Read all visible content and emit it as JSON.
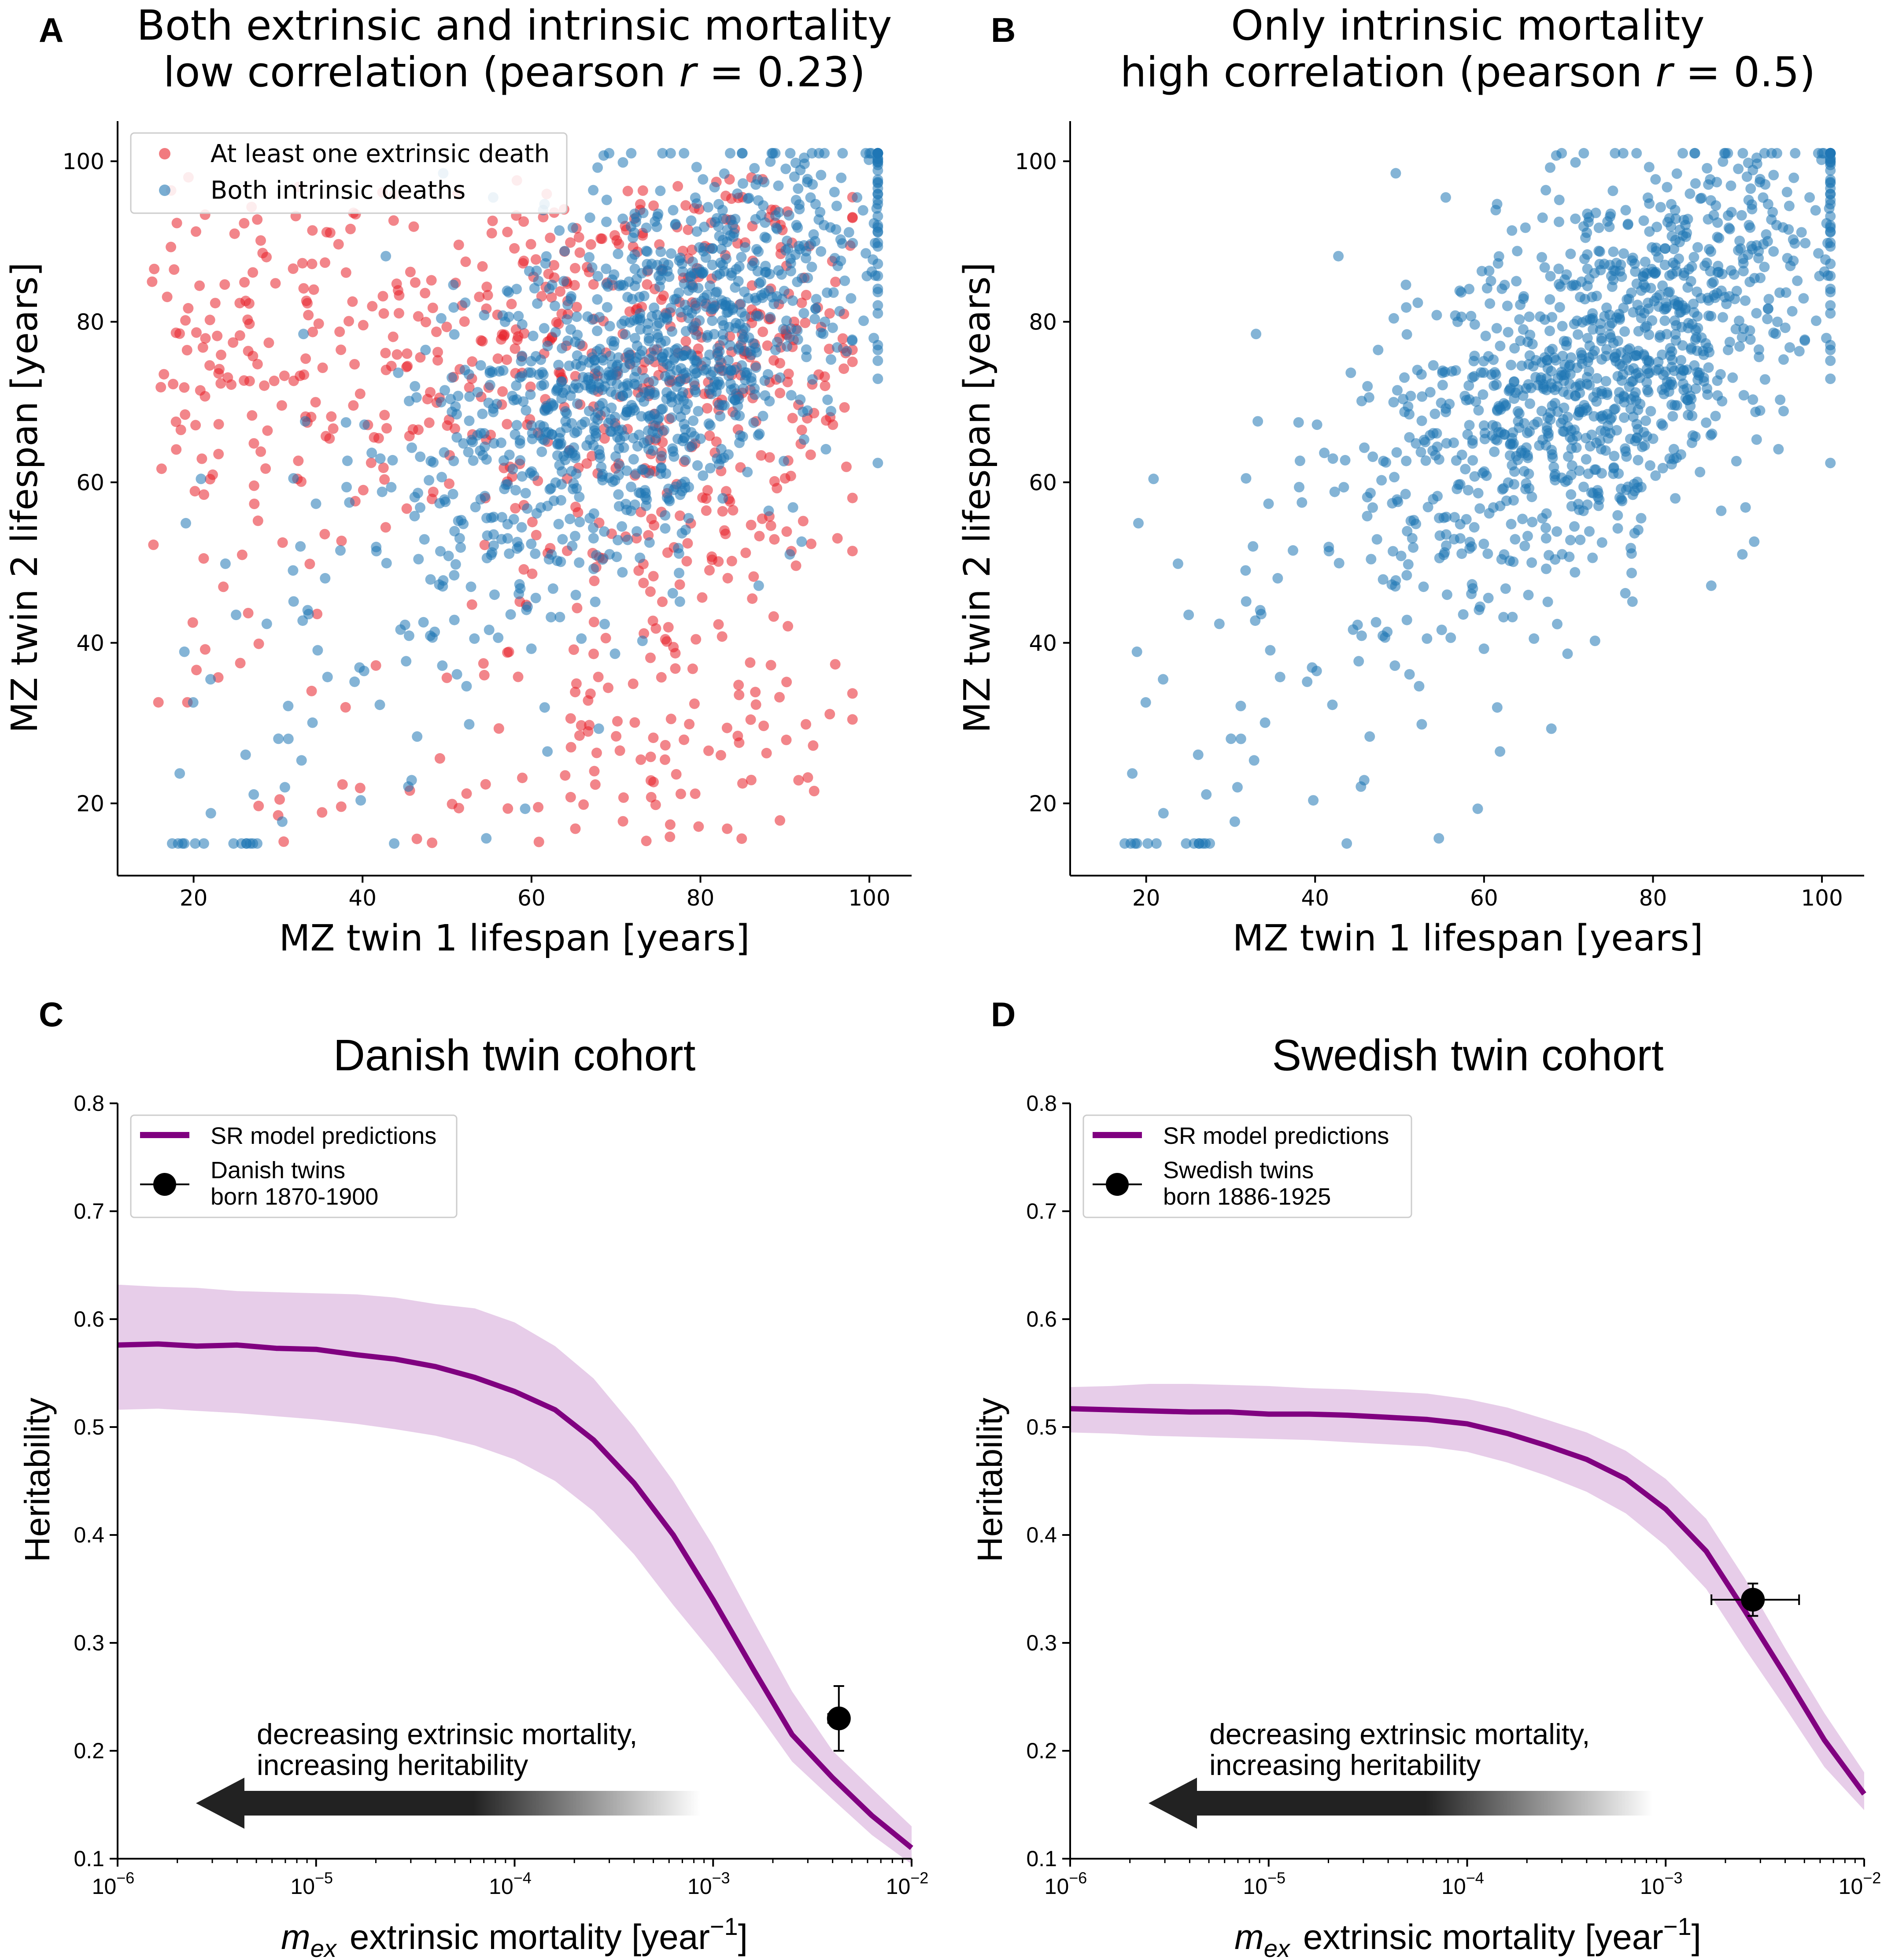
{
  "panels": {
    "A": {
      "letter": "A"
    },
    "B": {
      "letter": "B"
    },
    "C": {
      "letter": "C"
    },
    "D": {
      "letter": "D"
    }
  },
  "colors": {
    "extrinsic": "#e8212a",
    "intrinsic": "#1f77b4",
    "model": "#800080",
    "band": "#c990cf",
    "data_point": "#000000"
  },
  "chart_data": [
    {
      "id": "A",
      "type": "scatter",
      "title_line1": "Both extrinsic and intrinsic mortality",
      "title_line2_pre": "low correlation (pearson ",
      "title_r": "r",
      "title_line2_post": " = 0.23)",
      "xlabel": "MZ twin 1 lifespan [years]",
      "ylabel": "MZ twin 2 lifespan [years]",
      "xlim": [
        11,
        105
      ],
      "ylim": [
        11,
        105
      ],
      "xticks": [
        20,
        40,
        60,
        80,
        100
      ],
      "yticks": [
        20,
        40,
        60,
        80,
        100
      ],
      "legend_position": "top-left",
      "series": [
        {
          "name": "At least one extrinsic death",
          "color": "#e8212a",
          "n_points": 800
        },
        {
          "name": "Both intrinsic deaths",
          "color": "#1f77b4",
          "n_points": 1200
        }
      ],
      "pearson_r": 0.23
    },
    {
      "id": "B",
      "type": "scatter",
      "title_line1": "Only intrinsic mortality",
      "title_line2_pre": "high correlation (pearson ",
      "title_r": "r",
      "title_line2_post": " = 0.5)",
      "xlabel": "MZ twin 1 lifespan [years]",
      "ylabel": "MZ twin 2 lifespan [years]",
      "xlim": [
        11,
        105
      ],
      "ylim": [
        11,
        105
      ],
      "xticks": [
        20,
        40,
        60,
        80,
        100
      ],
      "yticks": [
        20,
        40,
        60,
        80,
        100
      ],
      "series": [
        {
          "name": "",
          "color": "#1f77b4",
          "n_points": 1200
        }
      ],
      "pearson_r": 0.5
    },
    {
      "id": "C",
      "type": "line",
      "title": "Danish twin cohort",
      "ylabel": "Heritability",
      "xlabel_symbol_main": "m",
      "xlabel_symbol_sub": "ex",
      "xlabel_text": "extrinsic mortality [year",
      "xlabel_sup": "−1",
      "xlabel_close": "]",
      "x_scale": "log",
      "xlim": [
        1e-06,
        0.01
      ],
      "ylim": [
        0.1,
        0.8
      ],
      "xticks": [
        {
          "value": 1e-06,
          "base": "10",
          "exp": "−6"
        },
        {
          "value": 1e-05,
          "base": "10",
          "exp": "−5"
        },
        {
          "value": 0.0001,
          "base": "10",
          "exp": "−4"
        },
        {
          "value": 0.001,
          "base": "10",
          "exp": "−3"
        },
        {
          "value": 0.01,
          "base": "10",
          "exp": "−2"
        }
      ],
      "yticks": [
        "0.1",
        "0.2",
        "0.3",
        "0.4",
        "0.5",
        "0.6",
        "0.7",
        "0.8"
      ],
      "legend_position": "top-left",
      "legend": {
        "model_label": "SR model predictions",
        "data_label_line1": "Danish twins",
        "data_label_line2": "born 1870-1900"
      },
      "model": {
        "x": [
          1e-06,
          1.6e-06,
          2.5e-06,
          4e-06,
          6.3e-06,
          1e-05,
          1.6e-05,
          2.5e-05,
          4e-05,
          6.3e-05,
          0.0001,
          0.00016,
          0.00025,
          0.0004,
          0.00063,
          0.001,
          0.0016,
          0.0025,
          0.004,
          0.0063,
          0.01
        ],
        "y": [
          0.576,
          0.577,
          0.575,
          0.576,
          0.573,
          0.572,
          0.567,
          0.563,
          0.556,
          0.546,
          0.533,
          0.516,
          0.488,
          0.448,
          0.4,
          0.34,
          0.275,
          0.215,
          0.175,
          0.14,
          0.11
        ],
        "lower": [
          0.516,
          0.517,
          0.515,
          0.513,
          0.51,
          0.507,
          0.503,
          0.498,
          0.492,
          0.483,
          0.47,
          0.45,
          0.422,
          0.382,
          0.335,
          0.29,
          0.24,
          0.19,
          0.155,
          0.122,
          0.095
        ],
        "upper": [
          0.632,
          0.63,
          0.629,
          0.626,
          0.625,
          0.624,
          0.623,
          0.62,
          0.614,
          0.61,
          0.597,
          0.575,
          0.545,
          0.5,
          0.45,
          0.39,
          0.32,
          0.255,
          0.2,
          0.165,
          0.13
        ]
      },
      "data_point": {
        "x": 0.0043,
        "y": 0.23,
        "y_err": 0.03,
        "x_err_low": 0.0038,
        "x_err_high": 0.0048
      },
      "annotation_line1": "decreasing extrinsic mortality,",
      "annotation_line2": "increasing heritability"
    },
    {
      "id": "D",
      "type": "line",
      "title": "Swedish twin cohort",
      "ylabel": "Heritability",
      "xlabel_symbol_main": "m",
      "xlabel_symbol_sub": "ex",
      "xlabel_text": "extrinsic mortality [year",
      "xlabel_sup": "−1",
      "xlabel_close": "]",
      "x_scale": "log",
      "xlim": [
        1e-06,
        0.01
      ],
      "ylim": [
        0.1,
        0.8
      ],
      "xticks": [
        {
          "value": 1e-06,
          "base": "10",
          "exp": "−6"
        },
        {
          "value": 1e-05,
          "base": "10",
          "exp": "−5"
        },
        {
          "value": 0.0001,
          "base": "10",
          "exp": "−4"
        },
        {
          "value": 0.001,
          "base": "10",
          "exp": "−3"
        },
        {
          "value": 0.01,
          "base": "10",
          "exp": "−2"
        }
      ],
      "yticks": [
        "0.1",
        "0.2",
        "0.3",
        "0.4",
        "0.5",
        "0.6",
        "0.7",
        "0.8"
      ],
      "legend_position": "top-left",
      "legend": {
        "model_label": "SR model predictions",
        "data_label_line1": "Swedish twins",
        "data_label_line2": "born 1886-1925"
      },
      "model": {
        "x": [
          1e-06,
          1.6e-06,
          2.5e-06,
          4e-06,
          6.3e-06,
          1e-05,
          1.6e-05,
          2.5e-05,
          4e-05,
          6.3e-05,
          0.0001,
          0.00016,
          0.00025,
          0.0004,
          0.00063,
          0.001,
          0.0016,
          0.0025,
          0.004,
          0.0063,
          0.01
        ],
        "y": [
          0.517,
          0.516,
          0.515,
          0.514,
          0.514,
          0.512,
          0.512,
          0.511,
          0.509,
          0.507,
          0.503,
          0.494,
          0.483,
          0.47,
          0.452,
          0.424,
          0.385,
          0.33,
          0.27,
          0.21,
          0.16
        ],
        "lower": [
          0.495,
          0.494,
          0.492,
          0.491,
          0.49,
          0.489,
          0.488,
          0.486,
          0.484,
          0.482,
          0.477,
          0.467,
          0.455,
          0.44,
          0.42,
          0.39,
          0.35,
          0.295,
          0.24,
          0.185,
          0.145
        ],
        "upper": [
          0.537,
          0.538,
          0.54,
          0.54,
          0.539,
          0.538,
          0.536,
          0.535,
          0.533,
          0.531,
          0.526,
          0.518,
          0.507,
          0.495,
          0.478,
          0.452,
          0.415,
          0.36,
          0.295,
          0.235,
          0.18
        ]
      },
      "data_point": {
        "x": 0.00275,
        "y": 0.34,
        "y_err": 0.015,
        "x_err_low": 0.0017,
        "x_err_high": 0.0047
      },
      "annotation_line1": "decreasing extrinsic mortality,",
      "annotation_line2": "increasing heritability"
    }
  ]
}
